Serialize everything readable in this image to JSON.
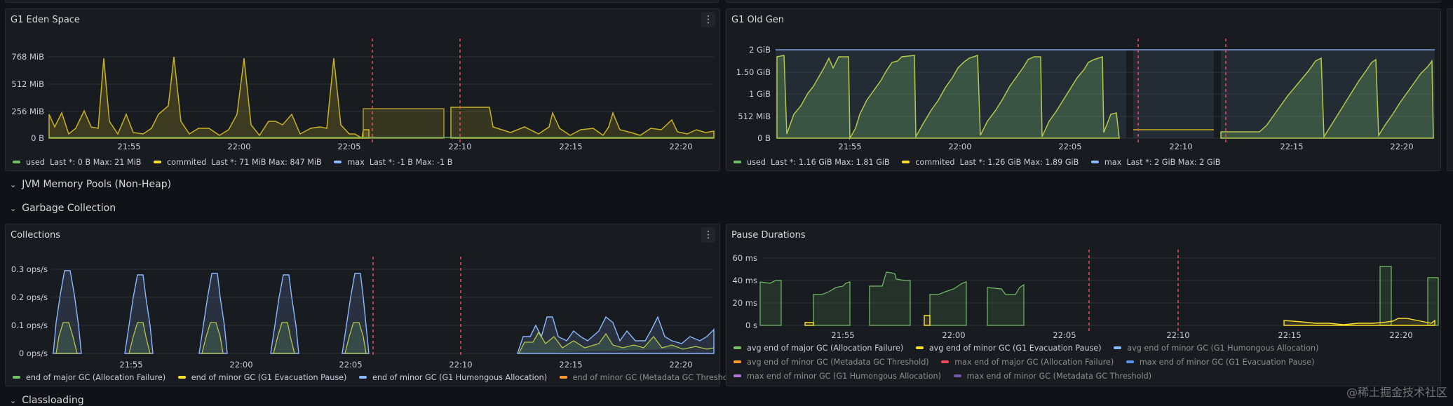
{
  "panels": {
    "eden": {
      "title": "G1 Eden Space",
      "y_ticks": [
        "768 MiB",
        "512 MiB",
        "256 MiB",
        "0 B"
      ],
      "x_ticks": [
        "21:55",
        "22:00",
        "22:05",
        "22:10",
        "22:15",
        "22:20"
      ],
      "legend": [
        {
          "name": "used",
          "stats": "Last *: 0 B   Max: 21 MiB",
          "color": "#73bf69"
        },
        {
          "name": "commited",
          "stats": "Last *: 71 MiB   Max: 847 MiB",
          "color": "#fade2a"
        },
        {
          "name": "max",
          "stats": "Last *: -1 B   Max: -1 B",
          "color": "#8ab8ff"
        }
      ]
    },
    "oldgen": {
      "title": "G1 Old Gen",
      "y_ticks": [
        "2 GiB",
        "1.50 GiB",
        "1 GiB",
        "512 MiB",
        "0 B"
      ],
      "x_ticks": [
        "21:55",
        "22:00",
        "22:05",
        "22:10",
        "22:15",
        "22:20"
      ],
      "legend": [
        {
          "name": "used",
          "stats": "Last *: 1.16 GiB   Max: 1.81 GiB",
          "color": "#73bf69"
        },
        {
          "name": "commited",
          "stats": "Last *: 1.26 GiB   Max: 1.89 GiB",
          "color": "#fade2a"
        },
        {
          "name": "max",
          "stats": "Last *: 2 GiB   Max: 2 GiB",
          "color": "#8ab8ff"
        }
      ]
    },
    "collections": {
      "title": "Collections",
      "y_ticks": [
        "0.3 ops/s",
        "0.2 ops/s",
        "0.1 ops/s",
        "0 ops/s"
      ],
      "x_ticks": [
        "21:55",
        "22:00",
        "22:05",
        "22:10",
        "22:15",
        "22:20"
      ],
      "legend": [
        {
          "name": "end of major GC (Allocation Failure)",
          "color": "#73bf69",
          "dim": false
        },
        {
          "name": "end of minor GC (G1 Evacuation Pause)",
          "color": "#fade2a",
          "dim": false
        },
        {
          "name": "end of minor GC (G1 Humongous Allocation)",
          "color": "#8ab8ff",
          "dim": false
        },
        {
          "name": "end of minor GC (Metadata GC Threshold)",
          "color": "#ff9830",
          "dim": true
        }
      ]
    },
    "pause": {
      "title": "Pause Durations",
      "y_ticks": [
        "60 ms",
        "40 ms",
        "20 ms",
        "0 s"
      ],
      "x_ticks": [
        "21:55",
        "22:00",
        "22:05",
        "22:10",
        "22:15",
        "22:20"
      ],
      "legend_rows": [
        [
          {
            "name": "avg end of major GC (Allocation Failure)",
            "color": "#73bf69",
            "dim": false
          },
          {
            "name": "avg end of minor GC (G1 Evacuation Pause)",
            "color": "#fade2a",
            "dim": false
          },
          {
            "name": "avg end of minor GC (G1 Humongous Allocation)",
            "color": "#8ab8ff",
            "dim": true
          }
        ],
        [
          {
            "name": "avg end of minor GC (Metadata GC Threshold)",
            "color": "#ff9830",
            "dim": true
          },
          {
            "name": "max end of major GC (Allocation Failure)",
            "color": "#f2495c",
            "dim": true
          },
          {
            "name": "max end of minor GC (G1 Evacuation Pause)",
            "color": "#5794f2",
            "dim": true
          }
        ],
        [
          {
            "name": "max end of minor GC (G1 Humongous Allocation)",
            "color": "#b877d9",
            "dim": true
          },
          {
            "name": "max end of minor GC (Metadata GC Threshold)",
            "color": "#705da0",
            "dim": true
          }
        ]
      ]
    }
  },
  "rows": {
    "nonheap": "JVM Memory Pools (Non-Heap)",
    "gc": "Garbage Collection",
    "classloading": "Classloading"
  },
  "icons": {
    "menu": "more-vertical-icon",
    "chevron": "chevron-down-icon"
  },
  "watermark": "@稀土掘金技术社区"
}
